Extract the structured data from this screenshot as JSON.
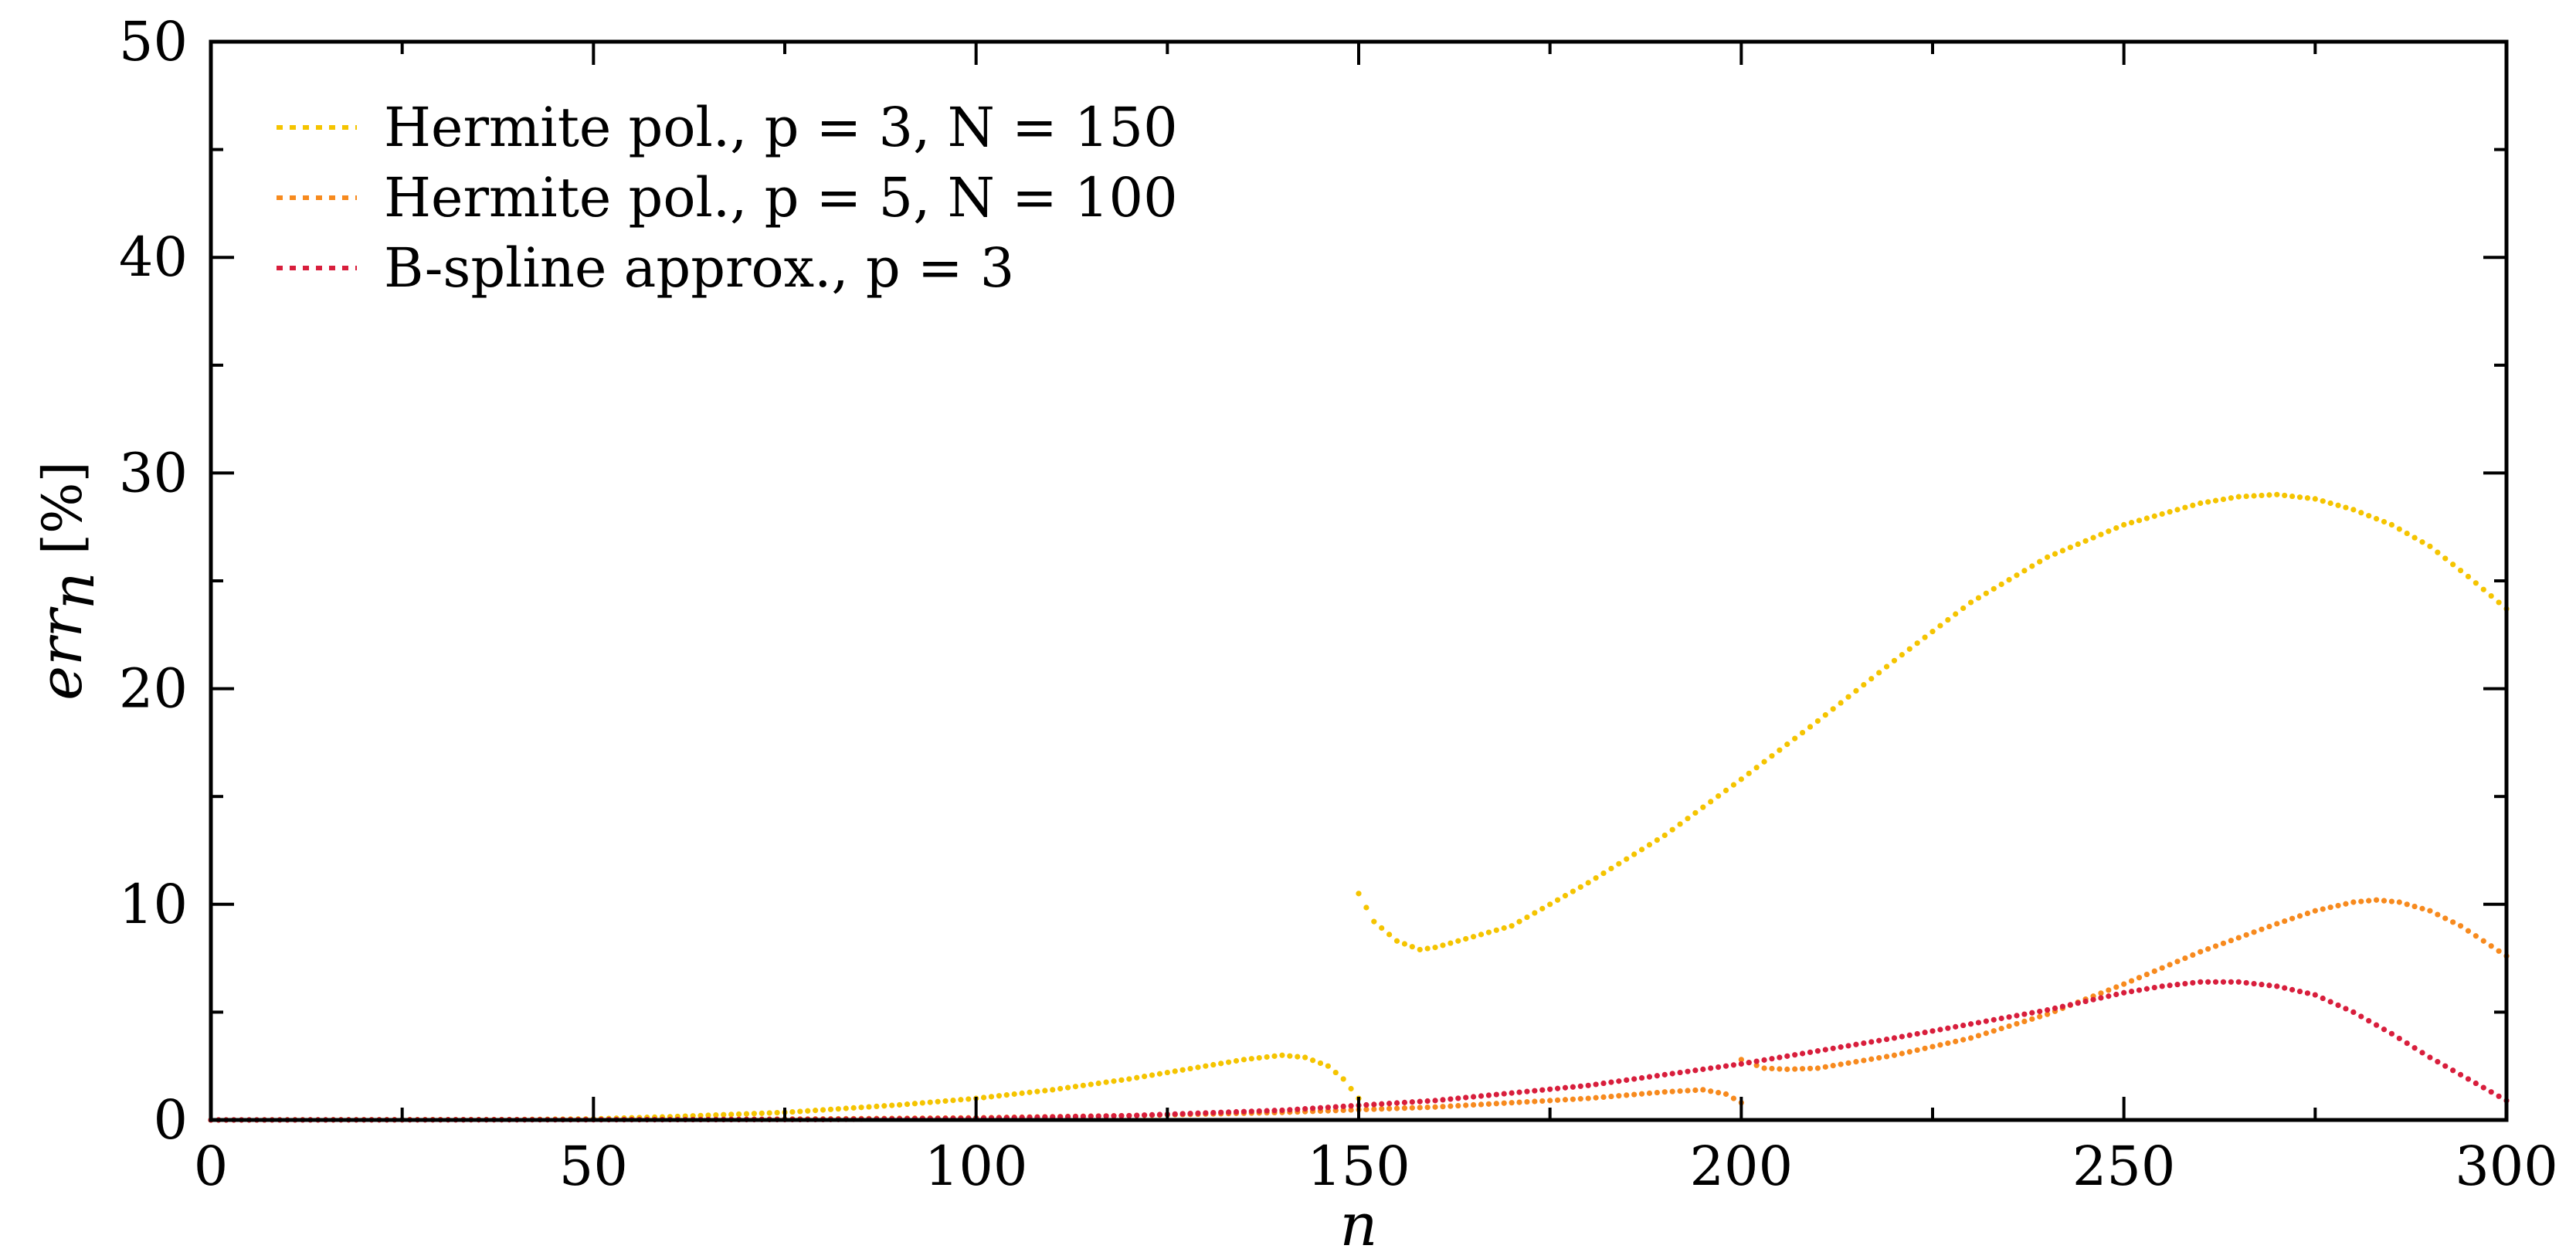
{
  "chart_data": {
    "type": "scatter",
    "xlabel": "n",
    "ylabel": "err_n [%]",
    "xlim": [
      0,
      300
    ],
    "ylim": [
      0,
      50
    ],
    "xticks": [
      0,
      50,
      100,
      150,
      200,
      250,
      300
    ],
    "yticks": [
      0,
      10,
      20,
      30,
      40,
      50
    ],
    "grid": false,
    "legend_position": "top-left",
    "series": [
      {
        "name": "Hermite pol., p = 3, N = 150",
        "color": "#f5c400",
        "segments": [
          {
            "x": [
              0,
              40,
              50,
              60,
              75,
              90,
              100,
              110,
              120,
              130,
              135,
              140,
              143,
              146,
              148,
              150
            ],
            "y": [
              0,
              0.02,
              0.05,
              0.15,
              0.35,
              0.7,
              1.0,
              1.4,
              1.9,
              2.5,
              2.8,
              3.0,
              2.9,
              2.5,
              1.9,
              1.0
            ]
          },
          {
            "x": [
              150,
              152,
              155,
              158,
              160,
              170,
              180,
              190,
              200,
              210,
              220,
              230,
              240,
              250,
              260,
              265,
              270,
              275,
              280,
              285,
              290,
              295,
              300
            ],
            "y": [
              10.5,
              9.2,
              8.3,
              7.9,
              8.0,
              9.0,
              11.0,
              13.2,
              15.8,
              18.5,
              21.3,
              24.0,
              26.1,
              27.6,
              28.6,
              28.9,
              29.0,
              28.8,
              28.3,
              27.6,
              26.6,
              25.2,
              23.7
            ]
          }
        ]
      },
      {
        "name": "Hermite pol., p = 5, N = 100",
        "color": "#f78a1e",
        "segments": [
          {
            "x": [
              0,
              60,
              80,
              100,
              120,
              140,
              160,
              180,
              190,
              195,
              198,
              200
            ],
            "y": [
              0,
              0.02,
              0.05,
              0.1,
              0.2,
              0.35,
              0.6,
              1.0,
              1.3,
              1.4,
              1.2,
              0.8
            ]
          },
          {
            "x": [
              200,
              203,
              206,
              210,
              220,
              230,
              240,
              250,
              260,
              270,
              275,
              280,
              283,
              286,
              290,
              294,
              297,
              300
            ],
            "y": [
              2.8,
              2.4,
              2.35,
              2.4,
              3.0,
              3.8,
              4.9,
              6.3,
              7.8,
              9.1,
              9.7,
              10.1,
              10.2,
              10.1,
              9.7,
              9.0,
              8.3,
              7.6
            ]
          }
        ]
      },
      {
        "name": "B-spline approx., p = 3",
        "color": "#d81e3c",
        "segments": [
          {
            "x": [
              0,
              80,
              100,
              120,
              140,
              160,
              180,
              200,
              220,
              240,
              250,
              255,
              260,
              265,
              270,
              275,
              280,
              285,
              290,
              295,
              300
            ],
            "y": [
              0,
              0.02,
              0.08,
              0.2,
              0.45,
              0.9,
              1.6,
              2.6,
              3.8,
              5.1,
              5.9,
              6.2,
              6.4,
              6.4,
              6.2,
              5.8,
              5.0,
              4.0,
              2.9,
              1.9,
              0.9
            ]
          }
        ]
      }
    ]
  },
  "legend": {
    "entries": [
      "Hermite pol., p = 3, N = 150",
      "Hermite pol., p = 5, N = 100",
      "B-spline approx., p = 3"
    ]
  },
  "axes": {
    "xlabel": "n",
    "ylabel_main": "err",
    "ylabel_sub": "n",
    "ylabel_unit": "[%]"
  }
}
